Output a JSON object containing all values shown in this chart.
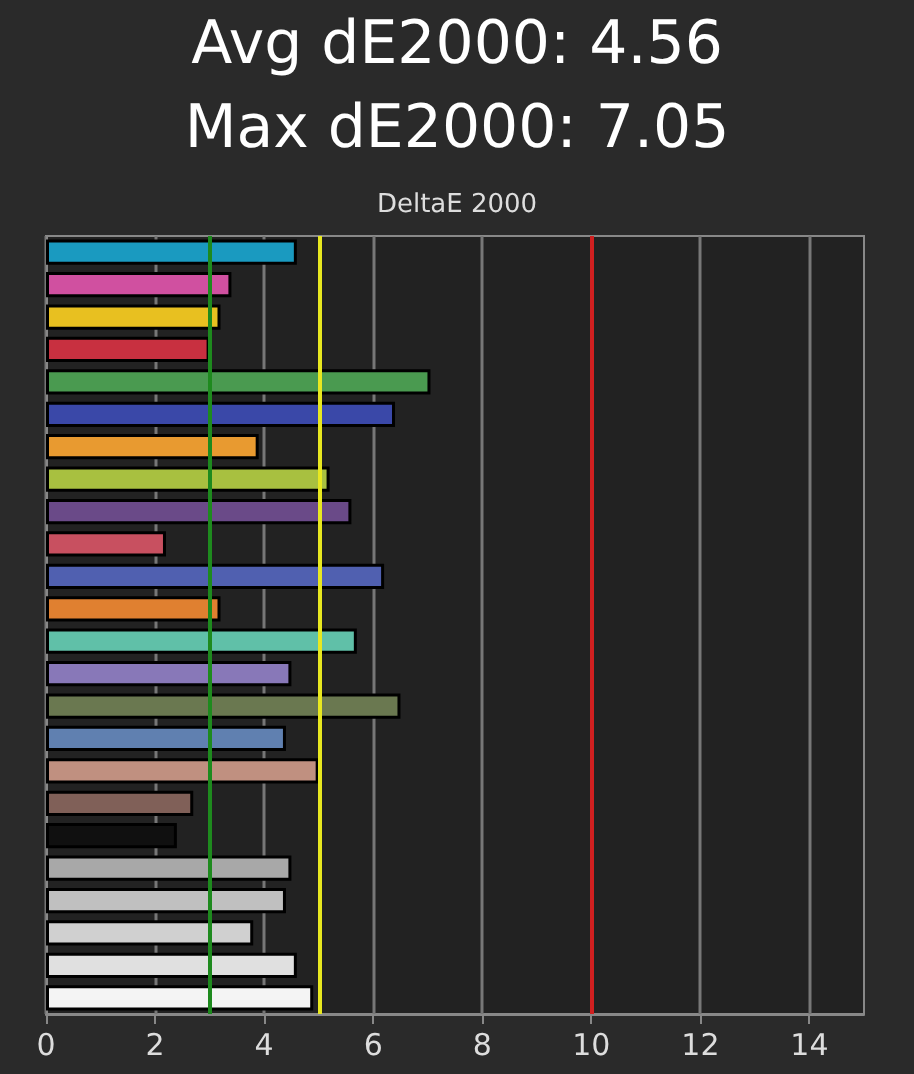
{
  "chart_data": {
    "type": "bar",
    "orientation": "horizontal",
    "title": "Avg dE2000: 4.56",
    "subtitle": "Max dE2000: 7.05",
    "annotations": [
      "DeltaE 2000"
    ],
    "categories": [
      null,
      null,
      null,
      null,
      null,
      null,
      null,
      null,
      null,
      null,
      null,
      null,
      null,
      null,
      null,
      null,
      null,
      null,
      null,
      null,
      null,
      null,
      null,
      null
    ],
    "values": [
      4.6,
      3.4,
      3.2,
      3.0,
      7.05,
      6.4,
      3.9,
      5.2,
      5.6,
      2.2,
      6.2,
      3.2,
      5.7,
      4.5,
      6.5,
      4.4,
      5.0,
      2.7,
      2.4,
      4.5,
      4.4,
      3.8,
      4.6,
      4.9
    ],
    "colors": [
      "#1a9ac0",
      "#d050a0",
      "#e8c020",
      "#c83040",
      "#4a9a50",
      "#3a48a8",
      "#e89a30",
      "#a8c040",
      "#6a4a88",
      "#c85060",
      "#5060b0",
      "#e08030",
      "#60c0a8",
      "#8878b8",
      "#6a7850",
      "#6080b0",
      "#c09080",
      "#806058",
      "#101010",
      "#a8a8a8",
      "#c0c0c0",
      "#d0d0d0",
      "#e0e0e0",
      "#f4f4f4"
    ],
    "xlim": [
      0,
      15
    ],
    "xticks": [
      0,
      2,
      4,
      6,
      8,
      10,
      12,
      14
    ],
    "grid": "x",
    "ref_lines": [
      {
        "axis": "x",
        "value": 3,
        "color": "#1e8a1e"
      },
      {
        "axis": "x",
        "value": 5,
        "color": "#e8e820"
      },
      {
        "axis": "x",
        "value": 10,
        "color": "#d02020"
      }
    ]
  }
}
